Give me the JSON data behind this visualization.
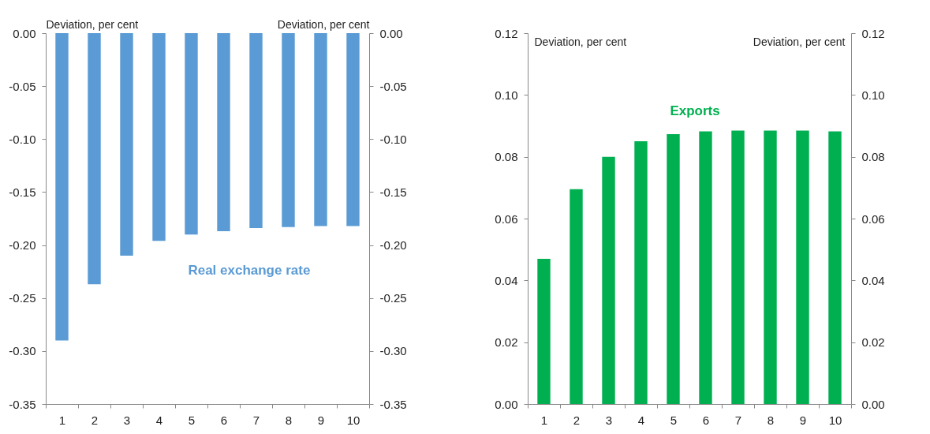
{
  "chart_data": [
    {
      "type": "bar",
      "categories": [
        "1",
        "2",
        "3",
        "4",
        "5",
        "6",
        "7",
        "8",
        "9",
        "10"
      ],
      "ylabel": "Deviation,  per cent",
      "y2label": "Deviation,  per cent",
      "ylim": [
        -0.35,
        0
      ],
      "yticks": [
        {
          "value": -0.35,
          "label": "-0.35"
        },
        {
          "value": -0.3,
          "label": "-0.30"
        },
        {
          "value": -0.25,
          "label": "-0.25"
        },
        {
          "value": -0.2,
          "label": "-0.20"
        },
        {
          "value": -0.15,
          "label": "-0.15"
        },
        {
          "value": -0.1,
          "label": "-0.10"
        },
        {
          "value": -0.05,
          "label": "-0.05"
        },
        {
          "value": 0,
          "label": "0.00"
        }
      ],
      "y2lim": [
        -0.35,
        0
      ],
      "y2ticks": [
        {
          "value": -0.35,
          "label": "-0.35"
        },
        {
          "value": -0.3,
          "label": "-0.30"
        },
        {
          "value": -0.25,
          "label": "-0.25"
        },
        {
          "value": -0.2,
          "label": "-0.20"
        },
        {
          "value": -0.15,
          "label": "-0.15"
        },
        {
          "value": -0.1,
          "label": "-0.10"
        },
        {
          "value": -0.05,
          "label": "-0.05"
        },
        {
          "value": 0,
          "label": "0.00"
        }
      ],
      "grid": false,
      "legend": false,
      "series": [
        {
          "name": "Real exchange rate",
          "color": "#5b9bd5",
          "values": [
            -0.29,
            -0.237,
            -0.21,
            -0.196,
            -0.19,
            -0.187,
            -0.184,
            -0.183,
            -0.182,
            -0.182
          ]
        }
      ]
    },
    {
      "type": "bar",
      "categories": [
        "1",
        "2",
        "3",
        "4",
        "5",
        "6",
        "7",
        "8",
        "9",
        "10"
      ],
      "ylabel": "Deviation, per cent",
      "y2label": "Deviation, per cent",
      "ylim": [
        0,
        0.12
      ],
      "yticks": [
        {
          "value": 0,
          "label": "0.00"
        },
        {
          "value": 0.02,
          "label": "0.02"
        },
        {
          "value": 0.04,
          "label": "0.04"
        },
        {
          "value": 0.06,
          "label": "0.06"
        },
        {
          "value": 0.08,
          "label": "0.08"
        },
        {
          "value": 0.1,
          "label": "0.10"
        },
        {
          "value": 0.12,
          "label": "0.12"
        }
      ],
      "y2lim": [
        0,
        0.12
      ],
      "y2ticks": [
        {
          "value": 0,
          "label": "0.00"
        },
        {
          "value": 0.02,
          "label": "0.02"
        },
        {
          "value": 0.04,
          "label": "0.04"
        },
        {
          "value": 0.06,
          "label": "0.06"
        },
        {
          "value": 0.08,
          "label": "0.08"
        },
        {
          "value": 0.1,
          "label": "0.10"
        },
        {
          "value": 0.12,
          "label": "0.12"
        }
      ],
      "grid": false,
      "legend": false,
      "series": [
        {
          "name": "Exports",
          "color": "#00b050",
          "values": [
            0.047,
            0.0695,
            0.08,
            0.085,
            0.0873,
            0.0882,
            0.0885,
            0.0885,
            0.0885,
            0.0882
          ]
        }
      ]
    }
  ]
}
